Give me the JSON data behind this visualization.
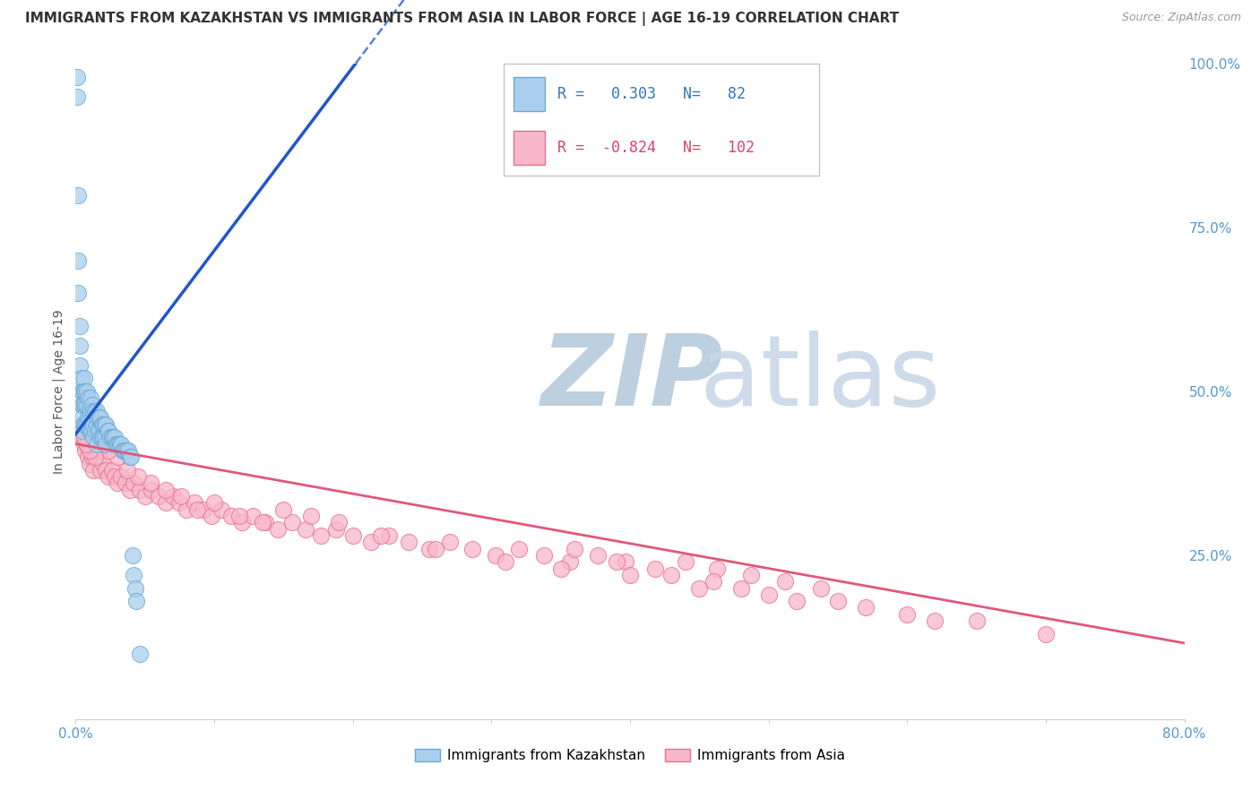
{
  "title": "IMMIGRANTS FROM KAZAKHSTAN VS IMMIGRANTS FROM ASIA IN LABOR FORCE | AGE 16-19 CORRELATION CHART",
  "source": "Source: ZipAtlas.com",
  "ylabel": "In Labor Force | Age 16-19",
  "right_yticks": [
    0.0,
    0.25,
    0.5,
    0.75,
    1.0
  ],
  "right_yticklabels": [
    "",
    "25.0%",
    "50.0%",
    "75.0%",
    "100.0%"
  ],
  "xmin": 0.0,
  "xmax": 0.8,
  "ymin": 0.0,
  "ymax": 1.0,
  "xticklabels_left": "0.0%",
  "xticklabels_right": "80.0%",
  "legend_kaz_R": "0.303",
  "legend_kaz_N": "82",
  "legend_asia_R": "-0.824",
  "legend_asia_N": "102",
  "kaz_color": "#aacfee",
  "kaz_edge_color": "#6aaad4",
  "kaz_line_color": "#2255cc",
  "asia_color": "#f8b8ca",
  "asia_edge_color": "#e87090",
  "asia_line_color": "#e05878",
  "watermark_zip_color": "#bdd0e0",
  "watermark_atlas_color": "#c8d8e8",
  "grid_color": "#d0d8e0",
  "background_color": "#ffffff",
  "title_fontsize": 11,
  "axis_label_fontsize": 10,
  "tick_fontsize": 11,
  "legend_fontsize": 12,
  "kaz_trend_intercept": 0.435,
  "kaz_trend_slope": 2.8,
  "asia_trend_intercept": 0.42,
  "asia_trend_slope": -0.38,
  "kaz_scatter_x": [
    0.001,
    0.001,
    0.002,
    0.002,
    0.002,
    0.003,
    0.003,
    0.003,
    0.004,
    0.004,
    0.004,
    0.004,
    0.005,
    0.005,
    0.005,
    0.005,
    0.006,
    0.006,
    0.006,
    0.006,
    0.007,
    0.007,
    0.007,
    0.008,
    0.008,
    0.008,
    0.009,
    0.009,
    0.01,
    0.01,
    0.01,
    0.011,
    0.011,
    0.011,
    0.012,
    0.012,
    0.012,
    0.013,
    0.013,
    0.013,
    0.014,
    0.014,
    0.015,
    0.015,
    0.015,
    0.016,
    0.016,
    0.017,
    0.017,
    0.018,
    0.018,
    0.019,
    0.019,
    0.02,
    0.02,
    0.021,
    0.021,
    0.022,
    0.022,
    0.023,
    0.024,
    0.025,
    0.026,
    0.027,
    0.028,
    0.029,
    0.03,
    0.031,
    0.032,
    0.033,
    0.034,
    0.035,
    0.036,
    0.037,
    0.038,
    0.039,
    0.04,
    0.041,
    0.042,
    0.043,
    0.044,
    0.046
  ],
  "kaz_scatter_y": [
    0.98,
    0.95,
    0.8,
    0.7,
    0.65,
    0.6,
    0.57,
    0.54,
    0.52,
    0.5,
    0.48,
    0.45,
    0.5,
    0.48,
    0.46,
    0.44,
    0.52,
    0.5,
    0.48,
    0.45,
    0.5,
    0.48,
    0.45,
    0.5,
    0.48,
    0.45,
    0.49,
    0.46,
    0.48,
    0.46,
    0.44,
    0.49,
    0.47,
    0.44,
    0.48,
    0.46,
    0.44,
    0.47,
    0.45,
    0.43,
    0.47,
    0.44,
    0.47,
    0.45,
    0.42,
    0.46,
    0.44,
    0.46,
    0.44,
    0.46,
    0.43,
    0.45,
    0.43,
    0.45,
    0.43,
    0.45,
    0.43,
    0.45,
    0.42,
    0.44,
    0.44,
    0.43,
    0.43,
    0.43,
    0.43,
    0.42,
    0.42,
    0.42,
    0.42,
    0.42,
    0.41,
    0.41,
    0.41,
    0.41,
    0.41,
    0.4,
    0.4,
    0.25,
    0.22,
    0.2,
    0.18,
    0.1
  ],
  "asia_scatter_x": [
    0.004,
    0.005,
    0.006,
    0.007,
    0.008,
    0.009,
    0.01,
    0.011,
    0.012,
    0.013,
    0.015,
    0.016,
    0.017,
    0.018,
    0.02,
    0.022,
    0.024,
    0.026,
    0.028,
    0.03,
    0.033,
    0.036,
    0.039,
    0.042,
    0.046,
    0.05,
    0.055,
    0.06,
    0.065,
    0.07,
    0.075,
    0.08,
    0.086,
    0.092,
    0.098,
    0.105,
    0.112,
    0.12,
    0.128,
    0.137,
    0.146,
    0.156,
    0.166,
    0.177,
    0.188,
    0.2,
    0.213,
    0.226,
    0.24,
    0.255,
    0.27,
    0.286,
    0.303,
    0.32,
    0.338,
    0.357,
    0.377,
    0.397,
    0.418,
    0.44,
    0.463,
    0.487,
    0.512,
    0.538,
    0.31,
    0.26,
    0.22,
    0.19,
    0.17,
    0.15,
    0.135,
    0.118,
    0.1,
    0.088,
    0.076,
    0.065,
    0.054,
    0.045,
    0.037,
    0.03,
    0.024,
    0.019,
    0.014,
    0.01,
    0.008,
    0.006,
    0.35,
    0.4,
    0.45,
    0.5,
    0.55,
    0.6,
    0.65,
    0.7,
    0.57,
    0.62,
    0.48,
    0.52,
    0.43,
    0.46,
    0.39,
    0.36
  ],
  "asia_scatter_y": [
    0.44,
    0.43,
    0.42,
    0.41,
    0.42,
    0.4,
    0.39,
    0.41,
    0.4,
    0.38,
    0.4,
    0.41,
    0.4,
    0.38,
    0.39,
    0.38,
    0.37,
    0.38,
    0.37,
    0.36,
    0.37,
    0.36,
    0.35,
    0.36,
    0.35,
    0.34,
    0.35,
    0.34,
    0.33,
    0.34,
    0.33,
    0.32,
    0.33,
    0.32,
    0.31,
    0.32,
    0.31,
    0.3,
    0.31,
    0.3,
    0.29,
    0.3,
    0.29,
    0.28,
    0.29,
    0.28,
    0.27,
    0.28,
    0.27,
    0.26,
    0.27,
    0.26,
    0.25,
    0.26,
    0.25,
    0.24,
    0.25,
    0.24,
    0.23,
    0.24,
    0.23,
    0.22,
    0.21,
    0.2,
    0.24,
    0.26,
    0.28,
    0.3,
    0.31,
    0.32,
    0.3,
    0.31,
    0.33,
    0.32,
    0.34,
    0.35,
    0.36,
    0.37,
    0.38,
    0.4,
    0.41,
    0.42,
    0.4,
    0.41,
    0.42,
    0.43,
    0.23,
    0.22,
    0.2,
    0.19,
    0.18,
    0.16,
    0.15,
    0.13,
    0.17,
    0.15,
    0.2,
    0.18,
    0.22,
    0.21,
    0.24,
    0.26
  ]
}
